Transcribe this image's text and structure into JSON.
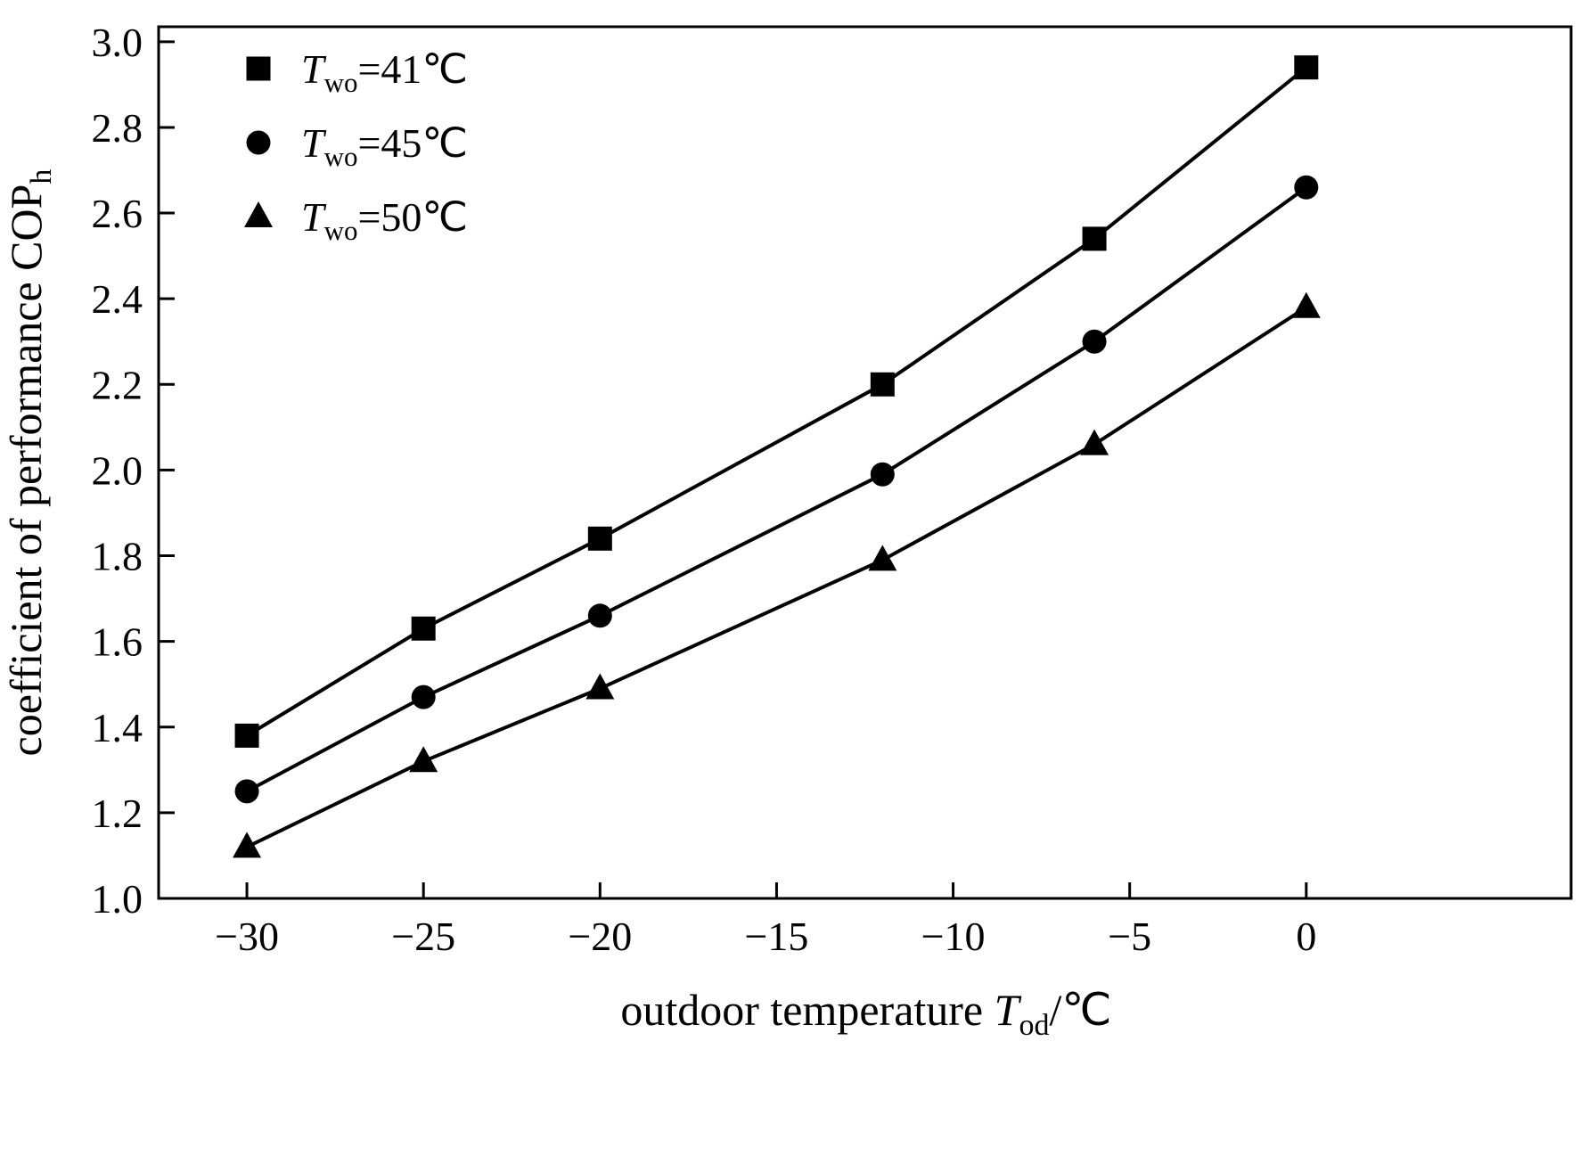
{
  "figure": {
    "background": "#ffffff",
    "line_color": "#000000",
    "text_color": "#000000"
  },
  "chart_data": {
    "type": "line",
    "title": "",
    "x": [
      -30,
      -25,
      -20,
      -12,
      -6,
      0
    ],
    "series": [
      {
        "name": "Two=41C",
        "marker": "square",
        "values": [
          1.38,
          1.63,
          1.84,
          2.2,
          2.54,
          2.94
        ]
      },
      {
        "name": "Two=45C",
        "marker": "circle",
        "values": [
          1.25,
          1.47,
          1.66,
          1.99,
          2.3,
          2.66
        ]
      },
      {
        "name": "Two=50C",
        "marker": "triangle",
        "values": [
          1.12,
          1.32,
          1.49,
          1.79,
          2.06,
          2.38
        ]
      }
    ],
    "xlim": [
      -32.5,
      7.5
    ],
    "ylim": [
      1.0,
      3.035
    ],
    "grid": false,
    "legend_position": "upper-left-inside",
    "xticks": [
      {
        "v": -30,
        "label": "−30"
      },
      {
        "v": -25,
        "label": "−25"
      },
      {
        "v": -20,
        "label": "−20"
      },
      {
        "v": -15,
        "label": "−15"
      },
      {
        "v": -10,
        "label": "−10"
      },
      {
        "v": -5,
        "label": "−5"
      },
      {
        "v": 0,
        "label": "0"
      }
    ],
    "yticks": [
      {
        "v": 1.0,
        "label": "1.0"
      },
      {
        "v": 1.2,
        "label": "1.2"
      },
      {
        "v": 1.4,
        "label": "1.4"
      },
      {
        "v": 1.6,
        "label": "1.6"
      },
      {
        "v": 1.8,
        "label": "1.8"
      },
      {
        "v": 2.0,
        "label": "2.0"
      },
      {
        "v": 2.2,
        "label": "2.2"
      },
      {
        "v": 2.4,
        "label": "2.4"
      },
      {
        "v": 2.6,
        "label": "2.6"
      },
      {
        "v": 2.8,
        "label": "2.8"
      },
      {
        "v": 3.0,
        "label": "3.0"
      }
    ],
    "xlabel_parts": [
      {
        "t": "outdoor temperature "
      },
      {
        "t": "T",
        "i": true
      },
      {
        "t": "od",
        "s": true
      },
      {
        "t": "/℃"
      }
    ],
    "ylabel_parts": [
      {
        "t": "coefficient of performance COP"
      },
      {
        "t": "h",
        "s": true
      }
    ],
    "legend": [
      {
        "marker": "square",
        "parts": [
          {
            "t": "T",
            "i": true
          },
          {
            "t": "wo",
            "s": true
          },
          {
            "t": "=41℃"
          }
        ]
      },
      {
        "marker": "circle",
        "parts": [
          {
            "t": "T",
            "i": true
          },
          {
            "t": "wo",
            "s": true
          },
          {
            "t": "=45℃"
          }
        ]
      },
      {
        "marker": "triangle",
        "parts": [
          {
            "t": "T",
            "i": true
          },
          {
            "t": "wo",
            "s": true
          },
          {
            "t": "=50℃"
          }
        ]
      }
    ]
  }
}
